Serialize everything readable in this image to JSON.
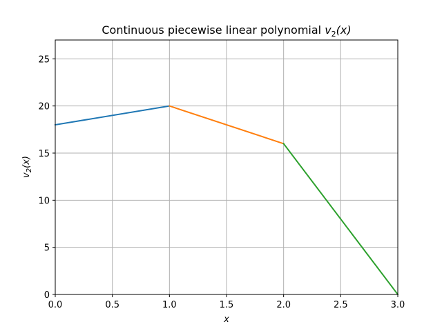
{
  "chart_data": {
    "type": "line",
    "title": "Continuous piecewise linear polynomial v₂(x)",
    "title_parts": {
      "prefix": "Continuous piecewise linear polynomial ",
      "var": "v",
      "sub": "2",
      "suffix": "(x)"
    },
    "xlabel": "x",
    "ylabel_parts": {
      "var": "v",
      "sub": "2",
      "suffix": "(x)"
    },
    "xlim": [
      0,
      3
    ],
    "ylim": [
      0,
      27
    ],
    "xticks": [
      0.0,
      0.5,
      1.0,
      1.5,
      2.0,
      2.5,
      3.0
    ],
    "xtick_labels": [
      "0.0",
      "0.5",
      "1.0",
      "1.5",
      "2.0",
      "2.5",
      "3.0"
    ],
    "yticks": [
      0,
      5,
      10,
      15,
      20,
      25
    ],
    "ytick_labels": [
      "0",
      "5",
      "10",
      "15",
      "20",
      "25"
    ],
    "grid": true,
    "series": [
      {
        "color": "#1f77b4",
        "x": [
          0,
          1
        ],
        "y": [
          18,
          20
        ]
      },
      {
        "color": "#ff7f0e",
        "x": [
          1,
          2
        ],
        "y": [
          20,
          16
        ]
      },
      {
        "color": "#2ca02c",
        "x": [
          2,
          3
        ],
        "y": [
          16,
          0
        ]
      }
    ]
  }
}
